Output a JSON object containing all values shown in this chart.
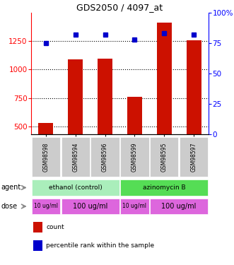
{
  "title": "GDS2050 / 4097_at",
  "samples": [
    "GSM98598",
    "GSM98594",
    "GSM98596",
    "GSM98599",
    "GSM98595",
    "GSM98597"
  ],
  "counts": [
    530,
    1090,
    1095,
    760,
    1410,
    1255
  ],
  "percentile_ranks": [
    75,
    82,
    82,
    78,
    83,
    82
  ],
  "ylim_left": [
    430,
    1500
  ],
  "ylim_right": [
    0,
    100
  ],
  "yticks_left": [
    500,
    750,
    1000,
    1250
  ],
  "yticks_right": [
    0,
    25,
    50,
    75,
    100
  ],
  "bar_color": "#cc1100",
  "dot_color": "#0000cc",
  "sample_bg_color": "#cccccc",
  "agents": [
    {
      "label": "ethanol (control)",
      "start": 0,
      "end": 3,
      "color": "#aaeebb"
    },
    {
      "label": "azinomycin B",
      "start": 3,
      "end": 6,
      "color": "#55dd55"
    }
  ],
  "doses": [
    {
      "label": "10 ug/ml",
      "start": 0,
      "end": 1,
      "color": "#dd66dd",
      "fontsize": 5.5
    },
    {
      "label": "100 ug/ml",
      "start": 1,
      "end": 3,
      "color": "#dd66dd",
      "fontsize": 7
    },
    {
      "label": "10 ug/ml",
      "start": 3,
      "end": 4,
      "color": "#dd66dd",
      "fontsize": 5.5
    },
    {
      "label": "100 ug/ml",
      "start": 4,
      "end": 6,
      "color": "#dd66dd",
      "fontsize": 7
    }
  ],
  "legend_items": [
    {
      "label": "count",
      "color": "#cc1100"
    },
    {
      "label": "percentile rank within the sample",
      "color": "#0000cc"
    }
  ]
}
